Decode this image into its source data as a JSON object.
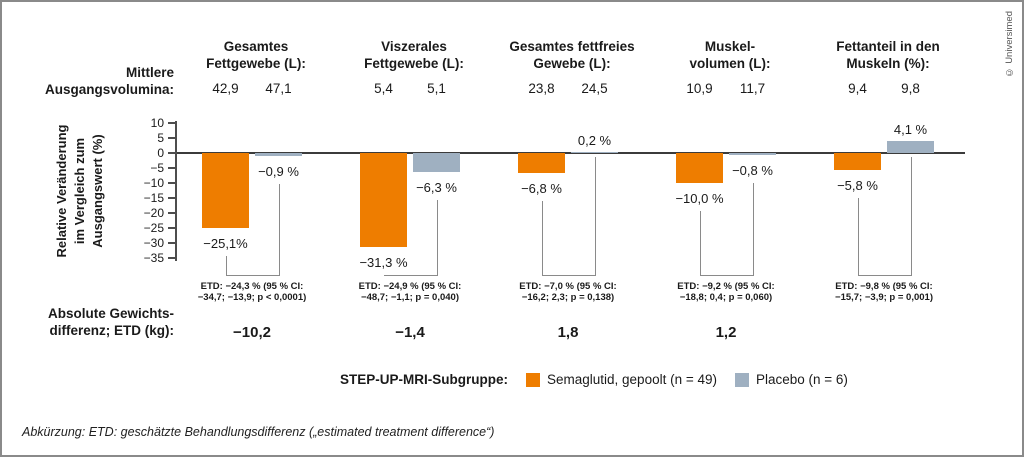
{
  "copyright": "© Universimed",
  "footnote": "Abkürzung: ETD: geschätzte Behandlungsdifferenz („estimated treatment difference“)",
  "header": {
    "row_label_line1": "Mittlere",
    "row_label_line2": "Ausgangsvolumina:"
  },
  "bottom": {
    "row_label_line1": "Absolute Gewichts-",
    "row_label_line2": "differenz; ETD (kg):"
  },
  "legend": {
    "title": "STEP-UP-MRI-Subgruppe:",
    "items": [
      {
        "label": "Semaglutid, gepoolt (n = 49)",
        "color": "#EE7D00"
      },
      {
        "label": "Placebo (n = 6)",
        "color": "#9FB0C1"
      }
    ]
  },
  "chart_data": {
    "type": "bar",
    "ylabel_lines": [
      "Relative Veränderung",
      "im Vergleich zum",
      "Ausgangswert (%)"
    ],
    "ylim": [
      -35,
      10
    ],
    "yticks": [
      10,
      5,
      0,
      -5,
      -10,
      -15,
      -20,
      -25,
      -30,
      -35
    ],
    "series_names": [
      "Semaglutid, gepoolt (n = 49)",
      "Placebo (n = 6)"
    ],
    "colors": {
      "semaglutid": "#EE7D00",
      "placebo": "#9FB0C1"
    },
    "groups": [
      {
        "title": [
          "Gesamtes",
          "Fettgewebe (L):"
        ],
        "baseline": [
          "42,9",
          "47,1"
        ],
        "values": [
          -25.1,
          -0.9
        ],
        "value_labels": [
          "−25,1%",
          "−0,9 %"
        ],
        "etd": [
          "ETD: −24,3 % (95 % CI:",
          "−34,7; −13,9; p < 0,0001)"
        ],
        "abs_diff": "−10,2"
      },
      {
        "title": [
          "Viszerales",
          "Fettgewebe (L):"
        ],
        "baseline": [
          "5,4",
          "5,1"
        ],
        "values": [
          -31.3,
          -6.3
        ],
        "value_labels": [
          "−31,3 %",
          "−6,3 %"
        ],
        "etd": [
          "ETD: −24,9 % (95 % CI:",
          "−48,7; −1,1; p = 0,040)"
        ],
        "abs_diff": "−1,4"
      },
      {
        "title": [
          "Gesamtes fettfreies",
          "Gewebe (L):"
        ],
        "baseline": [
          "23,8",
          "24,5"
        ],
        "values": [
          -6.8,
          0.2
        ],
        "value_labels": [
          "−6,8 %",
          "0,2 %"
        ],
        "etd": [
          "ETD: −7,0 % (95 % CI:",
          "−16,2; 2,3; p = 0,138)"
        ],
        "abs_diff": "1,8"
      },
      {
        "title": [
          "Muskel-",
          "volumen (L):"
        ],
        "baseline": [
          "10,9",
          "11,7"
        ],
        "values": [
          -10.0,
          -0.8
        ],
        "value_labels": [
          "−10,0 %",
          "−0,8 %"
        ],
        "etd": [
          "ETD: −9,2 % (95 % CI:",
          "−18,8; 0,4; p = 0,060)"
        ],
        "abs_diff": "1,2"
      },
      {
        "title": [
          "Fettanteil in den",
          "Muskeln (%):"
        ],
        "baseline": [
          "9,4",
          "9,8"
        ],
        "values": [
          -5.8,
          4.1
        ],
        "value_labels": [
          "−5,8 %",
          "4,1 %"
        ],
        "etd": [
          "ETD: −9,8 % (95 % CI:",
          "−15,7; −3,9; p = 0,001)"
        ],
        "abs_diff": null
      }
    ]
  }
}
